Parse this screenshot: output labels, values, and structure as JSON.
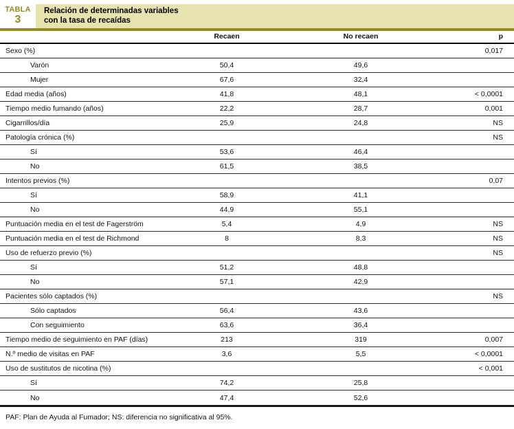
{
  "header": {
    "tag_word": "TABLA",
    "tag_number": "3",
    "title_line1": "Relación de determinadas variables",
    "title_line2": "con la tasa de recaídas"
  },
  "colors": {
    "olive": "#938c20",
    "band_background": "#e6e3ae"
  },
  "table": {
    "columns": {
      "label": "",
      "recaen": "Recaen",
      "no_recaen": "No recaen",
      "p": "p"
    },
    "rows": [
      {
        "label": "Sexo (%)",
        "indent": false,
        "recaen": "",
        "no_recaen": "",
        "p": "0,017"
      },
      {
        "label": "Varón",
        "indent": true,
        "recaen": "50,4",
        "no_recaen": "49,6",
        "p": ""
      },
      {
        "label": "Mujer",
        "indent": true,
        "recaen": "67,6",
        "no_recaen": "32,4",
        "p": ""
      },
      {
        "label": "Edad media (años)",
        "indent": false,
        "recaen": "41,8",
        "no_recaen": "48,1",
        "p": "< 0,0001"
      },
      {
        "label": "Tiempo medio fumando (años)",
        "indent": false,
        "recaen": "22,2",
        "no_recaen": "28,7",
        "p": "0,001"
      },
      {
        "label": "Cigarrillos/día",
        "indent": false,
        "recaen": "25,9",
        "no_recaen": "24,8",
        "p": "NS"
      },
      {
        "label": "Patología crónica (%)",
        "indent": false,
        "recaen": "",
        "no_recaen": "",
        "p": "NS"
      },
      {
        "label": "Sí",
        "indent": true,
        "recaen": "53,6",
        "no_recaen": "46,4",
        "p": ""
      },
      {
        "label": "No",
        "indent": true,
        "recaen": "61,5",
        "no_recaen": "38,5",
        "p": ""
      },
      {
        "label": "Intentos previos (%)",
        "indent": false,
        "recaen": "",
        "no_recaen": "",
        "p": "0,07"
      },
      {
        "label": "Sí",
        "indent": true,
        "recaen": "58,9",
        "no_recaen": "41,1",
        "p": ""
      },
      {
        "label": "No",
        "indent": true,
        "recaen": "44,9",
        "no_recaen": "55,1",
        "p": ""
      },
      {
        "label": "Puntuación media en el test de Fagerström",
        "indent": false,
        "recaen": "5,4",
        "no_recaen": "4,9",
        "p": "NS"
      },
      {
        "label": "Puntuación media en el test de Richmond",
        "indent": false,
        "recaen": "8",
        "no_recaen": "8,3",
        "p": "NS"
      },
      {
        "label": "Uso de refuerzo previo (%)",
        "indent": false,
        "recaen": "",
        "no_recaen": "",
        "p": "NS"
      },
      {
        "label": "Sí",
        "indent": true,
        "recaen": "51,2",
        "no_recaen": "48,8",
        "p": ""
      },
      {
        "label": "No",
        "indent": true,
        "recaen": "57,1",
        "no_recaen": "42,9",
        "p": ""
      },
      {
        "label": "Pacientes sólo captados (%)",
        "indent": false,
        "recaen": "",
        "no_recaen": "",
        "p": "NS"
      },
      {
        "label": "Sólo captados",
        "indent": true,
        "recaen": "56,4",
        "no_recaen": "43,6",
        "p": ""
      },
      {
        "label": "Con seguimiento",
        "indent": true,
        "recaen": "63,6",
        "no_recaen": "36,4",
        "p": ""
      },
      {
        "label": "Tiempo medio de seguimiento en PAF (días)",
        "indent": false,
        "recaen": "213",
        "no_recaen": "319",
        "p": "0,007"
      },
      {
        "label": "N.º medio de visitas en PAF",
        "indent": false,
        "recaen": "3,6",
        "no_recaen": "5,5",
        "p": "< 0,0001"
      },
      {
        "label": "Uso de sustitutos de nicotina (%)",
        "indent": false,
        "recaen": "",
        "no_recaen": "",
        "p": "< 0,001"
      },
      {
        "label": "Sí",
        "indent": true,
        "recaen": "74,2",
        "no_recaen": "25,8",
        "p": ""
      },
      {
        "label": "No",
        "indent": true,
        "recaen": "47,4",
        "no_recaen": "52,6",
        "p": ""
      }
    ]
  },
  "footnote": "PAF: Plan de Ayuda al Fumador; NS: diferencia no significativa al 95%."
}
